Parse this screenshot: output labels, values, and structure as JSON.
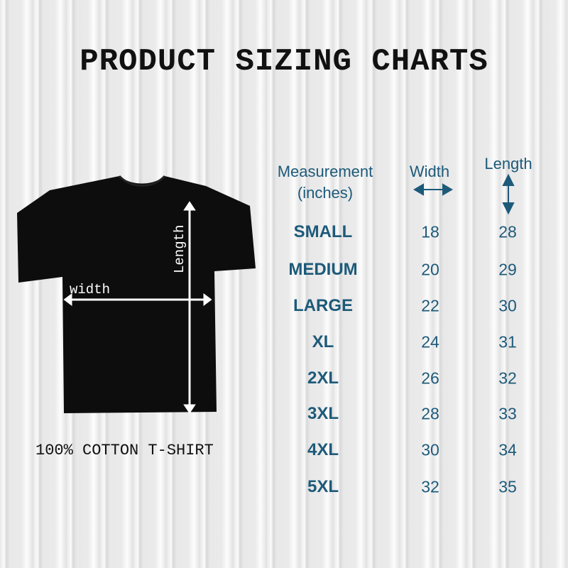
{
  "title": "PRODUCT SIZING CHARTS",
  "caption": "100% COTTON T-SHIRT",
  "shirt_labels": {
    "width": "width",
    "length": "Length"
  },
  "colors": {
    "accent": "#1d5a7a",
    "shirt": "#0d0d0d",
    "background": "#e9e9e9"
  },
  "table": {
    "headers": {
      "measurement_line1": "Measurement",
      "measurement_line2": "(inches)",
      "width": "Width",
      "length": "Length"
    },
    "header_icons": {
      "width": "horizontal-double-arrow-icon",
      "length": "vertical-double-arrow-icon"
    },
    "rows": [
      {
        "size": "SMALL",
        "width": "18",
        "length": "28"
      },
      {
        "size": "MEDIUM",
        "width": "20",
        "length": "29"
      },
      {
        "size": "LARGE",
        "width": "22",
        "length": "30"
      },
      {
        "size": "XL",
        "width": "24",
        "length": "31"
      },
      {
        "size": "2XL",
        "width": "26",
        "length": "32"
      },
      {
        "size": "3XL",
        "width": "28",
        "length": "33"
      },
      {
        "size": "4XL",
        "width": "30",
        "length": "34"
      },
      {
        "size": "5XL",
        "width": "32",
        "length": "35"
      }
    ]
  }
}
